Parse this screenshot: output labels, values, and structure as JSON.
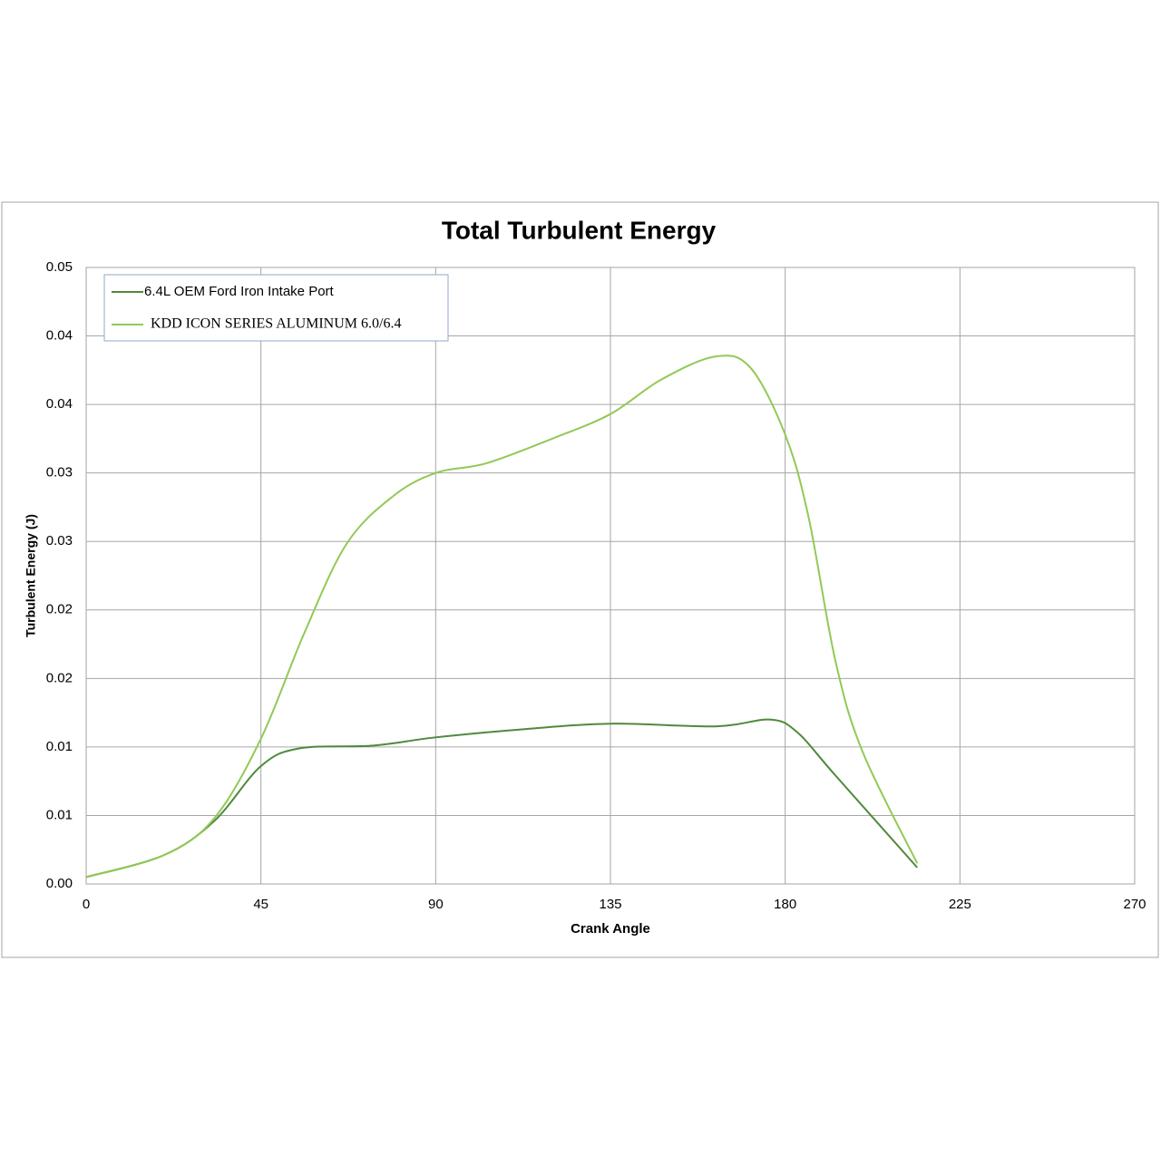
{
  "chart_data": {
    "type": "line",
    "title": "Total Turbulent Energy",
    "x_label": "Crank Angle",
    "y_label": "Turbulent Energy (J)",
    "xlim": [
      0,
      270
    ],
    "xticks": [
      0,
      45,
      90,
      135,
      180,
      225,
      270
    ],
    "ylim": [
      0,
      0.045
    ],
    "yticks": [
      {
        "value": 0,
        "label": "0.00"
      },
      {
        "value": 0.005,
        "label": "0.01"
      },
      {
        "value": 0.01,
        "label": "0.01"
      },
      {
        "value": 0.015,
        "label": "0.02"
      },
      {
        "value": 0.02,
        "label": "0.02"
      },
      {
        "value": 0.025,
        "label": "0.03"
      },
      {
        "value": 0.03,
        "label": "0.03"
      },
      {
        "value": 0.035,
        "label": "0.04"
      },
      {
        "value": 0.04,
        "label": "0.04"
      },
      {
        "value": 0.045,
        "label": "0.05"
      }
    ],
    "grid": true,
    "legend": "top-left",
    "series": [
      {
        "name": "6.4L OEM Ford Iron Intake Port",
        "color": "#4e8a3c",
        "x": [
          0,
          20,
          33,
          45,
          55,
          74,
          90,
          113,
          135,
          162,
          176,
          183,
          193,
          214
        ],
        "values": [
          0.0005,
          0.0021,
          0.0046,
          0.0086,
          0.0099,
          0.0101,
          0.0107,
          0.0113,
          0.0117,
          0.0115,
          0.012,
          0.0111,
          0.0079,
          0.0012
        ]
      },
      {
        "name": "KDD ICON SERIES ALUMINUM 6.0/6.4",
        "color": "#92c955",
        "x": [
          0,
          20,
          33,
          45,
          56,
          67,
          79,
          90,
          103,
          120,
          135,
          148,
          162,
          171,
          180,
          186,
          193,
          200,
          214
        ],
        "values": [
          0.0005,
          0.0021,
          0.0048,
          0.0106,
          0.0182,
          0.0248,
          0.0283,
          0.03,
          0.0307,
          0.0325,
          0.0343,
          0.0368,
          0.0385,
          0.0377,
          0.0328,
          0.0268,
          0.0162,
          0.0096,
          0.0015
        ]
      }
    ]
  }
}
